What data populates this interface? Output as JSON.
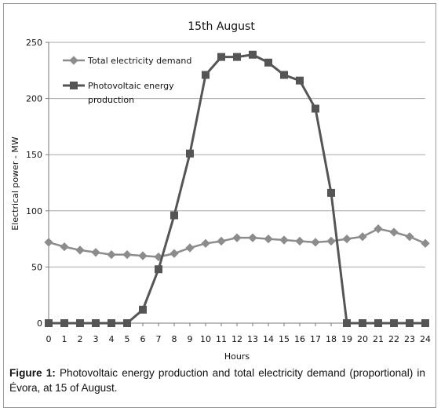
{
  "chart_data": {
    "type": "line",
    "title": "15th August",
    "xlabel": "Hours",
    "ylabel": "Electrical power - MW",
    "x": [
      0,
      1,
      2,
      3,
      4,
      5,
      6,
      7,
      8,
      9,
      10,
      11,
      12,
      13,
      14,
      15,
      16,
      17,
      18,
      19,
      20,
      21,
      22,
      23,
      24
    ],
    "xlim": [
      0,
      24
    ],
    "ylim": [
      0,
      250
    ],
    "yticks": [
      0,
      50,
      100,
      150,
      200,
      250
    ],
    "grid": "horizontal",
    "legend_position": "top-left",
    "series": [
      {
        "name": "Total electricity demand",
        "marker": "diamond",
        "color": "#8c8c8c",
        "values": [
          72,
          68,
          65,
          63,
          61,
          61,
          60,
          59,
          62,
          67,
          71,
          73,
          76,
          76,
          75,
          74,
          73,
          72,
          73,
          75,
          77,
          84,
          81,
          77,
          71
        ]
      },
      {
        "name": "Photovoltaic energy production",
        "marker": "square",
        "color": "#555555",
        "values": [
          0,
          0,
          0,
          0,
          0,
          0,
          12,
          48,
          96,
          151,
          221,
          237,
          237,
          239,
          232,
          221,
          216,
          191,
          116,
          0,
          0,
          0,
          0,
          0,
          0
        ]
      }
    ]
  },
  "caption": {
    "label": "Figure 1:",
    "text": "Photovoltaic energy production and total electricity demand (proportional) in Évora, at 15 of August."
  }
}
